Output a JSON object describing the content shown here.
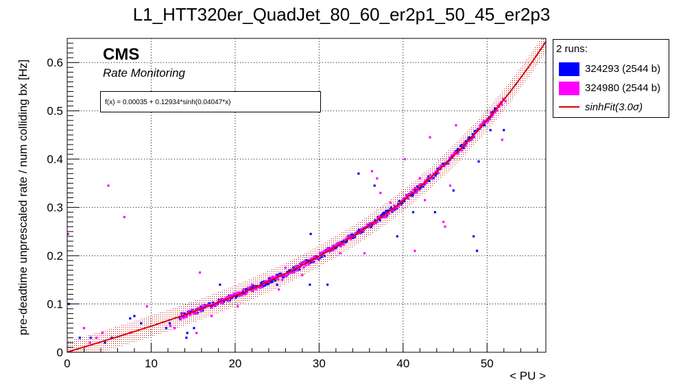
{
  "chart_data": {
    "type": "scatter",
    "title": "L1_HTT320er_QuadJet_80_60_er2p1_50_45_er2p3",
    "xlabel": "< PU >",
    "ylabel": "pre-deadtime unprescaled rate / num colliding bx [Hz]",
    "xlim": [
      0,
      57
    ],
    "ylim": [
      0,
      0.65
    ],
    "x_ticks": [
      0,
      10,
      20,
      30,
      40,
      50
    ],
    "y_ticks": [
      0,
      0.1,
      0.2,
      0.3,
      0.4,
      0.5,
      0.6
    ],
    "grid": true,
    "legend_placement": "outside-top-right",
    "annotations": {
      "experiment": "CMS",
      "subtitle": "Rate Monitoring",
      "fit_formula": "f(x) = 0.00035 + 0.12934*sinh(0.04047*x)"
    },
    "legend": {
      "header": "2 runs:",
      "entries": [
        {
          "label": "324293 (2544 b)",
          "color": "#0000ff"
        },
        {
          "label": "324980 (2544 b)",
          "color": "#ff00ff"
        },
        {
          "label": "sinhFit(3.0σ)",
          "color": "#d40000"
        }
      ]
    },
    "fit": {
      "a": 0.00035,
      "b": 0.12934,
      "c": 0.04047,
      "band_sigma": 3.0,
      "band_halfwidth": 0.022
    },
    "series": [
      {
        "name": "324293 (2544 b)",
        "color": "#0000ff",
        "outliers": [
          [
            0.2,
            0.1
          ],
          [
            1.5,
            0.03
          ],
          [
            2.8,
            0.03
          ],
          [
            4.5,
            0.02
          ],
          [
            5.3,
            0.03
          ],
          [
            7.5,
            0.07
          ],
          [
            8.0,
            0.075
          ],
          [
            8.8,
            0.06
          ],
          [
            11.8,
            0.05
          ],
          [
            12.2,
            0.06
          ],
          [
            13.4,
            0.07
          ],
          [
            14.2,
            0.03
          ],
          [
            14.3,
            0.04
          ],
          [
            15.1,
            0.05
          ],
          [
            18.2,
            0.14
          ],
          [
            23.2,
            0.14
          ],
          [
            25.0,
            0.14
          ],
          [
            28.9,
            0.14
          ],
          [
            29.0,
            0.245
          ],
          [
            31.0,
            0.14
          ],
          [
            34.7,
            0.37
          ],
          [
            36.6,
            0.345
          ],
          [
            37.0,
            0.28
          ],
          [
            39.3,
            0.24
          ],
          [
            41.2,
            0.29
          ],
          [
            43.8,
            0.29
          ],
          [
            46.0,
            0.335
          ],
          [
            48.4,
            0.24
          ],
          [
            48.8,
            0.21
          ],
          [
            49.0,
            0.395
          ],
          [
            49.7,
            0.47
          ],
          [
            50.4,
            0.46
          ],
          [
            52.0,
            0.46
          ]
        ],
        "cluster_x_range": [
          13.5,
          51
        ]
      },
      {
        "name": "324980 (2544 b)",
        "color": "#ff00ff",
        "outliers": [
          [
            0.1,
            0.245
          ],
          [
            0.5,
            0.0
          ],
          [
            2.0,
            0.05
          ],
          [
            2.7,
            0.02
          ],
          [
            3.5,
            0.03
          ],
          [
            4.2,
            0.04
          ],
          [
            4.9,
            0.345
          ],
          [
            6.8,
            0.28
          ],
          [
            7.5,
            0.04
          ],
          [
            9.5,
            0.095
          ],
          [
            12.3,
            0.055
          ],
          [
            12.8,
            0.05
          ],
          [
            15.4,
            0.04
          ],
          [
            15.8,
            0.165
          ],
          [
            17.2,
            0.075
          ],
          [
            19.0,
            0.11
          ],
          [
            20.3,
            0.095
          ],
          [
            22.0,
            0.14
          ],
          [
            25.2,
            0.13
          ],
          [
            25.6,
            0.15
          ],
          [
            26.0,
            0.175
          ],
          [
            28.0,
            0.16
          ],
          [
            32.5,
            0.205
          ],
          [
            35.0,
            0.255
          ],
          [
            35.4,
            0.205
          ],
          [
            36.3,
            0.375
          ],
          [
            36.9,
            0.36
          ],
          [
            37.3,
            0.33
          ],
          [
            38.0,
            0.28
          ],
          [
            38.5,
            0.31
          ],
          [
            40.2,
            0.4
          ],
          [
            41.4,
            0.21
          ],
          [
            42.0,
            0.36
          ],
          [
            42.6,
            0.315
          ],
          [
            43.2,
            0.445
          ],
          [
            44.8,
            0.27
          ],
          [
            45.0,
            0.26
          ],
          [
            45.6,
            0.345
          ],
          [
            46.3,
            0.47
          ],
          [
            51.8,
            0.44
          ],
          [
            52.2,
            0.52
          ]
        ],
        "cluster_x_range": [
          13.5,
          52
        ]
      }
    ]
  }
}
